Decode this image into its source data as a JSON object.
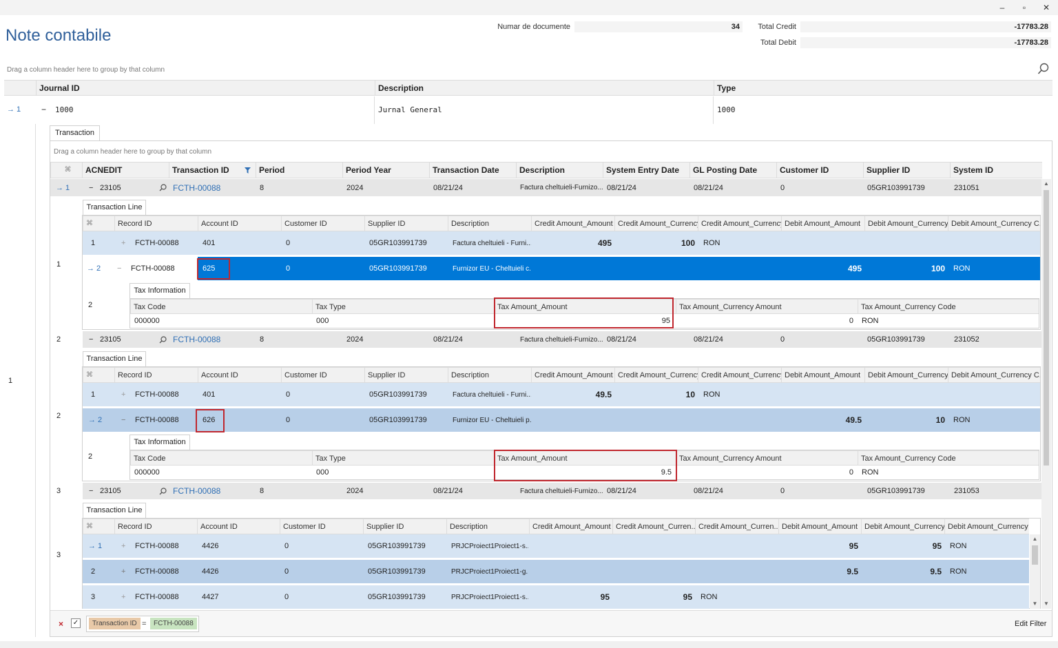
{
  "window": {
    "minimize": "–",
    "restore": "▫",
    "close": "✕"
  },
  "page": {
    "title": "Note contabile"
  },
  "summary": {
    "docs_label": "Numar de documente",
    "docs_value": "34",
    "credit_label": "Total Credit",
    "credit_value": "-17783.28",
    "debit_label": "Total Debit",
    "debit_value": "-17783.28"
  },
  "group_hint": "Drag a column header here to group by that column",
  "journal": {
    "columns": [
      "Journal ID",
      "Description",
      "Type"
    ],
    "row": {
      "indicator": "→ 1",
      "expand": "−",
      "id": "1000",
      "description": "Jurnal General",
      "type": "1000"
    },
    "outer_index": "1"
  },
  "transaction_tab": "Transaction",
  "transactions": {
    "columns": [
      "ACNEDIT",
      "Transaction ID",
      "Period",
      "Period Year",
      "Transaction Date",
      "Description",
      "System Entry Date",
      "GL Posting Date",
      "Customer ID",
      "Supplier ID",
      "System ID"
    ],
    "rows": [
      {
        "ind": "→ 1",
        "idx": "1",
        "expand": "−",
        "acnedit": "23105",
        "tid": "FCTH-00088",
        "period": "8",
        "year": "2024",
        "date": "08/21/24",
        "desc": "Factura cheltuieli-Furnizo...",
        "sysdate": "08/21/24",
        "gldate": "08/21/24",
        "cust": "0",
        "supp": "05GR103991739",
        "sysid": "231051"
      },
      {
        "ind": "",
        "idx": "2",
        "expand": "−",
        "acnedit": "23105",
        "tid": "FCTH-00088",
        "period": "8",
        "year": "2024",
        "date": "08/21/24",
        "desc": "Factura cheltuieli-Furnizo...",
        "sysdate": "08/21/24",
        "gldate": "08/21/24",
        "cust": "0",
        "supp": "05GR103991739",
        "sysid": "231052"
      },
      {
        "ind": "",
        "idx": "3",
        "expand": "−",
        "acnedit": "23105",
        "tid": "FCTH-00088",
        "period": "8",
        "year": "2024",
        "date": "08/21/24",
        "desc": "Factura cheltuieli-Furnizo...",
        "sysdate": "08/21/24",
        "gldate": "08/21/24",
        "cust": "0",
        "supp": "05GR103991739",
        "sysid": "231053"
      }
    ]
  },
  "line_tab": "Transaction Line",
  "lines_columns": [
    "Record ID",
    "Account ID",
    "Customer ID",
    "Supplier ID",
    "Description",
    "Credit Amount_Amount",
    "Credit Amount_Currency...",
    "Credit Amount_Currency...",
    "Debit Amount_Amount",
    "Debit Amount_Currency...",
    "Debit Amount_Currency C..."
  ],
  "lines_columns_3": [
    "Record ID",
    "Account ID",
    "Customer ID",
    "Supplier ID",
    "Description",
    "Credit Amount_Amount",
    "Credit Amount_Curren...",
    "Credit Amount_Curren...",
    "Debit Amount_Amount",
    "Debit Amount_Currency...",
    "Debit Amount_Currency ..."
  ],
  "group1": {
    "side_index": "1",
    "lines": [
      {
        "ind": "1",
        "exp": "+",
        "rec": "FCTH-00088",
        "acc": "401",
        "cust": "0",
        "supp": "05GR103991739",
        "desc": "Factura cheltuieli - Furni...",
        "camt": "495",
        "ccur": "100",
        "ccode": "RON",
        "damt": "",
        "dcur": "",
        "dcode": ""
      },
      {
        "ind": "→ 2",
        "exp": "−",
        "rec": "FCTH-00088",
        "acc": "625",
        "cust": "0",
        "supp": "05GR103991739",
        "desc": "Furnizor EU - Cheltuieli c...",
        "camt": "",
        "ccur": "",
        "ccode": "",
        "damt": "495",
        "dcur": "100",
        "dcode": "RON"
      }
    ],
    "tax_index": "2",
    "tax": {
      "code": "000000",
      "type": "000",
      "amount": "95",
      "cur_amount": "0",
      "cur_code": "RON"
    }
  },
  "group2": {
    "side_index": "2",
    "lines": [
      {
        "ind": "1",
        "exp": "+",
        "rec": "FCTH-00088",
        "acc": "401",
        "cust": "0",
        "supp": "05GR103991739",
        "desc": "Factura cheltuieli - Furni...",
        "camt": "49.5",
        "ccur": "10",
        "ccode": "RON",
        "damt": "",
        "dcur": "",
        "dcode": ""
      },
      {
        "ind": "→ 2",
        "exp": "−",
        "rec": "FCTH-00088",
        "acc": "626",
        "cust": "0",
        "supp": "05GR103991739",
        "desc": "Furnizor EU - Cheltuieli p...",
        "camt": "",
        "ccur": "",
        "ccode": "",
        "damt": "49.5",
        "dcur": "10",
        "dcode": "RON"
      }
    ],
    "tax_index": "2",
    "tax": {
      "code": "000000",
      "type": "000",
      "amount": "9.5",
      "cur_amount": "0",
      "cur_code": "RON"
    }
  },
  "group3": {
    "side_index": "3",
    "lines": [
      {
        "ind": "→ 1",
        "exp": "+",
        "rec": "FCTH-00088",
        "acc": "4426",
        "cust": "0",
        "supp": "05GR103991739",
        "desc": "PRJCProiect1Proiect1-s...",
        "camt": "",
        "ccur": "",
        "ccode": "",
        "damt": "95",
        "dcur": "95",
        "dcode": "RON"
      },
      {
        "ind": "2",
        "exp": "+",
        "rec": "FCTH-00088",
        "acc": "4426",
        "cust": "0",
        "supp": "05GR103991739",
        "desc": "PRJCProiect1Proiect1-g...",
        "camt": "",
        "ccur": "",
        "ccode": "",
        "damt": "9.5",
        "dcur": "9.5",
        "dcode": "RON"
      },
      {
        "ind": "3",
        "exp": "+",
        "rec": "FCTH-00088",
        "acc": "4427",
        "cust": "0",
        "supp": "05GR103991739",
        "desc": "PRJCProiect1Proiect1-s...",
        "camt": "95",
        "ccur": "95",
        "ccode": "RON",
        "damt": "",
        "dcur": "",
        "dcode": ""
      }
    ]
  },
  "tax_tab": "Tax Information",
  "tax_columns": [
    "Tax Code",
    "Tax Type",
    "Tax Amount_Amount",
    "Tax Amount_Currency Amount",
    "Tax Amount_Currency Code"
  ],
  "filter": {
    "close": "×",
    "check": "✓",
    "field": "Transaction ID",
    "op": "=",
    "value": "FCTH-00088",
    "edit": "Edit Filter"
  },
  "colors": {
    "selected": "#0078d7",
    "highlight_box": "#c0262d",
    "title": "#2f5f9a"
  }
}
